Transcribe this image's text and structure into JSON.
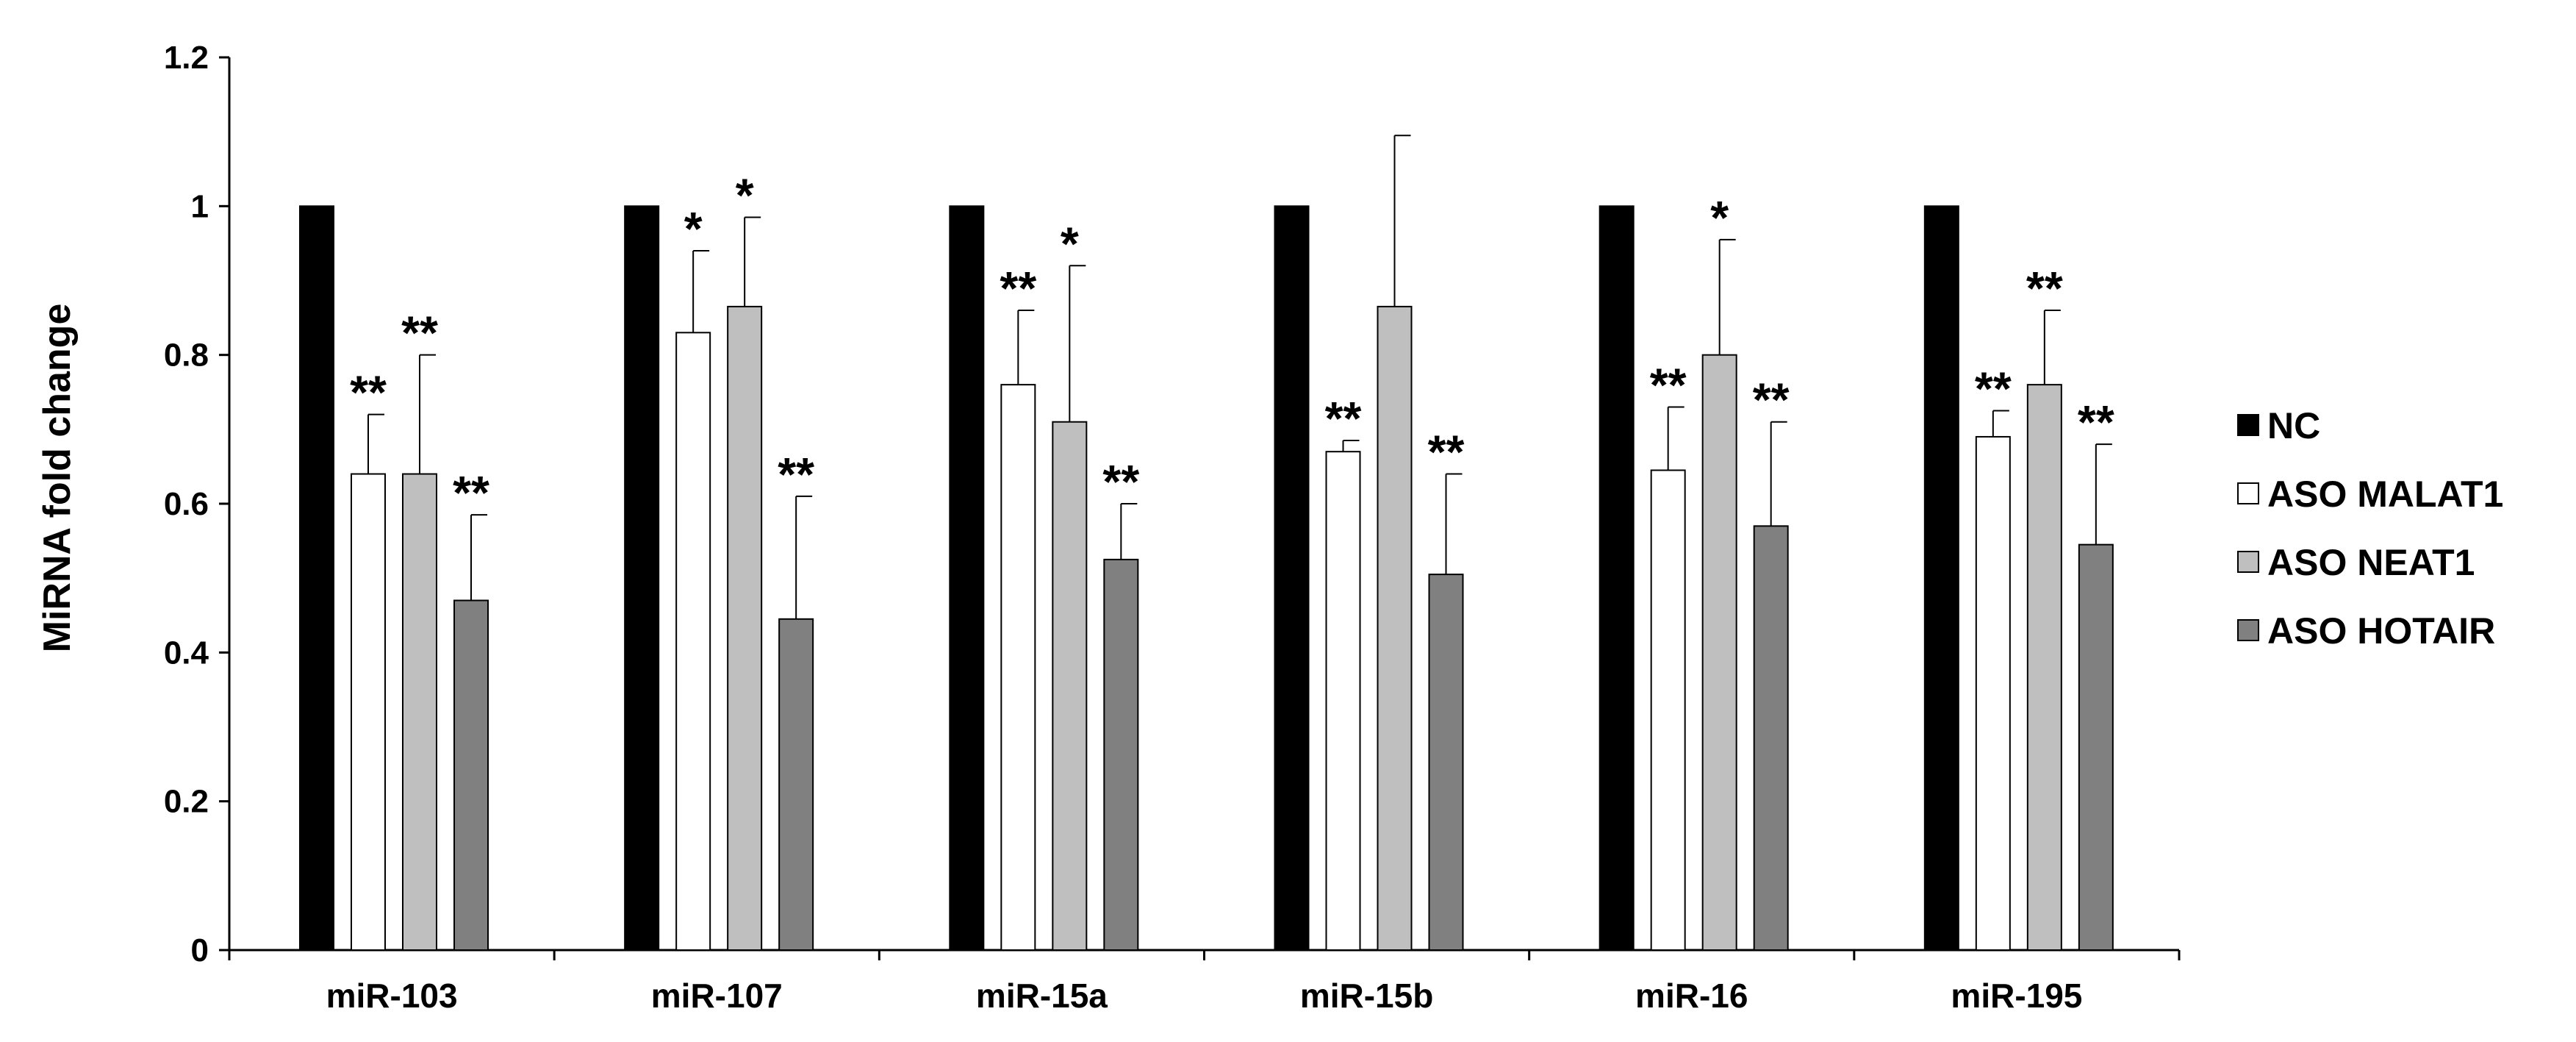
{
  "chart_data": {
    "type": "bar",
    "title": "",
    "xlabel": "",
    "ylabel": "MiRNA fold change",
    "ylim": [
      0,
      1.2
    ],
    "yticks": [
      "0",
      "0.2",
      "0.4",
      "0.6",
      "0.8",
      "1",
      "1.2"
    ],
    "grid": false,
    "legend_position": "right",
    "categories": [
      "miR-103",
      "miR-107",
      "miR-15a",
      "miR-15b",
      "miR-16",
      "miR-195"
    ],
    "series": [
      {
        "name": "NC",
        "color": "#000000",
        "values": [
          1,
          1,
          1,
          1,
          1,
          1
        ],
        "errors": [
          null,
          null,
          null,
          null,
          null,
          null
        ],
        "significance": [
          "",
          "",
          "",
          "",
          "",
          ""
        ]
      },
      {
        "name": "ASO MALAT1",
        "color": "#ffffff",
        "values": [
          0.64,
          0.83,
          0.76,
          0.67,
          0.645,
          0.69
        ],
        "errors": [
          0.08,
          0.11,
          0.1,
          0.015,
          0.085,
          0.035
        ],
        "significance": [
          "**",
          "*",
          "**",
          "**",
          "**",
          "**"
        ]
      },
      {
        "name": "ASO NEAT1",
        "color": "#bfbfbf",
        "values": [
          0.64,
          0.865,
          0.71,
          0.865,
          0.8,
          0.76
        ],
        "errors": [
          0.16,
          0.12,
          0.21,
          0.23,
          0.155,
          0.1
        ],
        "significance": [
          "**",
          "*",
          "*",
          "",
          "*",
          "**"
        ]
      },
      {
        "name": "ASO HOTAIR",
        "color": "#808080",
        "values": [
          0.47,
          0.445,
          0.525,
          0.505,
          0.57,
          0.545
        ],
        "errors": [
          0.115,
          0.165,
          0.075,
          0.135,
          0.14,
          0.135
        ],
        "significance": [
          "**",
          "**",
          "**",
          "**",
          "**",
          "**"
        ]
      }
    ]
  }
}
